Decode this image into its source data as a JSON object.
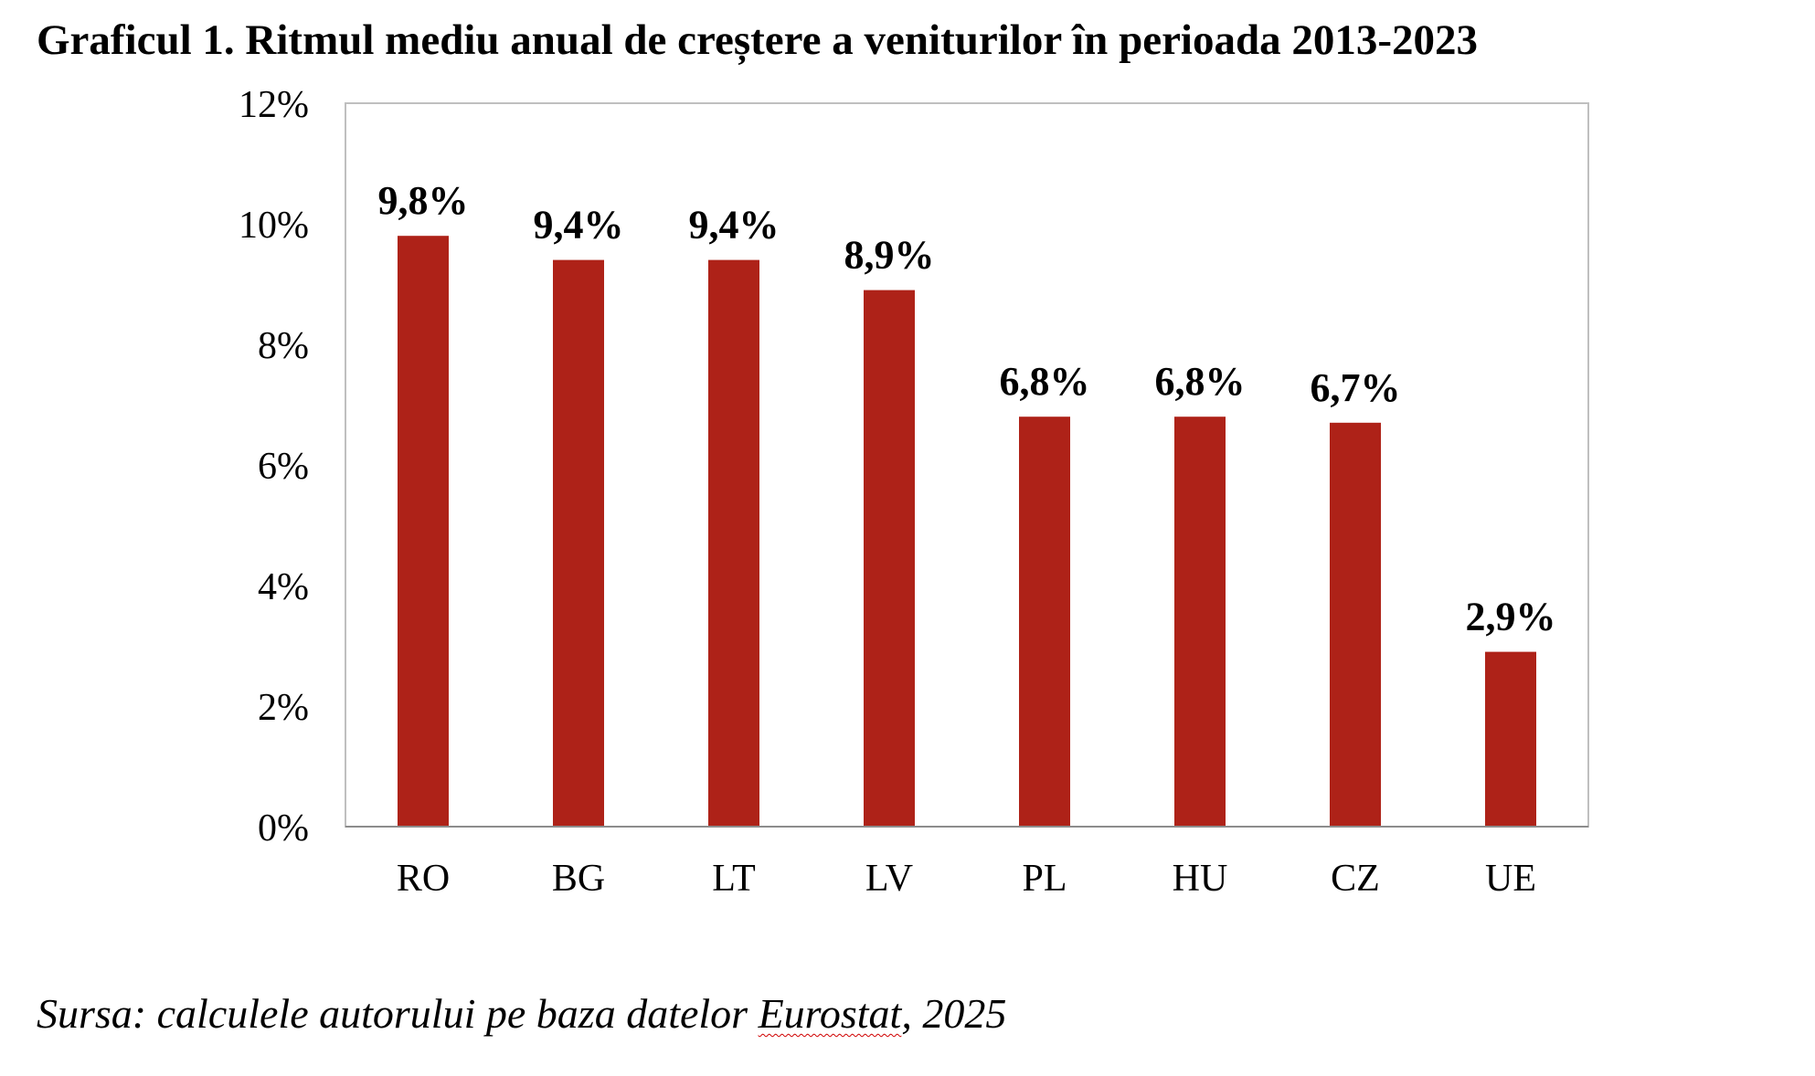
{
  "title": "Graficul 1. Ritmul mediu anual de creștere a veniturilor în perioada 2013-2023",
  "source": {
    "prefix": "Sursa: calculele autorului pe baza datelor ",
    "highlighted": "Eurostat",
    "suffix": ", 2025"
  },
  "colors": {
    "bar": "#AE2218",
    "frame": "#BFBFBF",
    "axis": "#8C8C8C",
    "spellcheck_underline": "#D00000"
  },
  "chart_data": {
    "type": "bar",
    "title": "Graficul 1. Ritmul mediu anual de creștere a veniturilor în perioada 2013-2023",
    "xlabel": "",
    "ylabel": "",
    "categories": [
      "RO",
      "BG",
      "LT",
      "LV",
      "PL",
      "HU",
      "CZ",
      "UE"
    ],
    "values": [
      9.8,
      9.4,
      9.4,
      8.9,
      6.8,
      6.8,
      6.7,
      2.9
    ],
    "data_labels": [
      "9,8%",
      "9,4%",
      "9,4%",
      "8,9%",
      "6,8%",
      "6,8%",
      "6,7%",
      "2,9%"
    ],
    "ylim": [
      0,
      12
    ],
    "yticks": [
      0,
      2,
      4,
      6,
      8,
      10,
      12
    ],
    "ytick_labels": [
      "0%",
      "2%",
      "4%",
      "6%",
      "8%",
      "10%",
      "12%"
    ],
    "grid": false,
    "legend": "none"
  }
}
